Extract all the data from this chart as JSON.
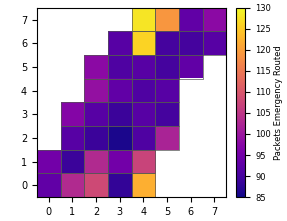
{
  "colorbar_label": "Packets Emergency Routed",
  "cmap": "plasma",
  "vmin": 85,
  "vmax": 130,
  "n": 8,
  "cell_values": {
    "0,0": 93,
    "0,1": 103,
    "0,2": 108,
    "0,3": 88,
    "0,4": 122,
    "1,0": 95,
    "1,1": 89,
    "1,2": 103,
    "1,3": 95,
    "1,4": 107,
    "2,1": 92,
    "2,2": 89,
    "2,3": 86,
    "2,4": 91,
    "2,5": 102,
    "3,1": 97,
    "3,2": 92,
    "3,3": 89,
    "3,4": 92,
    "3,5": 90,
    "4,2": 99,
    "4,3": 93,
    "4,4": 91,
    "4,5": 92,
    "5,2": 98,
    "5,3": 91,
    "5,4": 92,
    "5,5": 90,
    "5,6": 93,
    "6,3": 92,
    "6,4": 126,
    "6,5": 90,
    "6,6": 90,
    "6,7": 92,
    "7,4": 128,
    "7,5": 119,
    "7,6": 93,
    "7,7": 98
  },
  "xticks": [
    0,
    1,
    2,
    3,
    4,
    5,
    6,
    7
  ],
  "yticks": [
    0,
    1,
    2,
    3,
    4,
    5,
    6,
    7
  ],
  "colorbar_ticks": [
    85,
    90,
    95,
    100,
    105,
    110,
    115,
    120,
    125,
    130
  ],
  "figsize": [
    2.87,
    2.21
  ],
  "dpi": 100
}
